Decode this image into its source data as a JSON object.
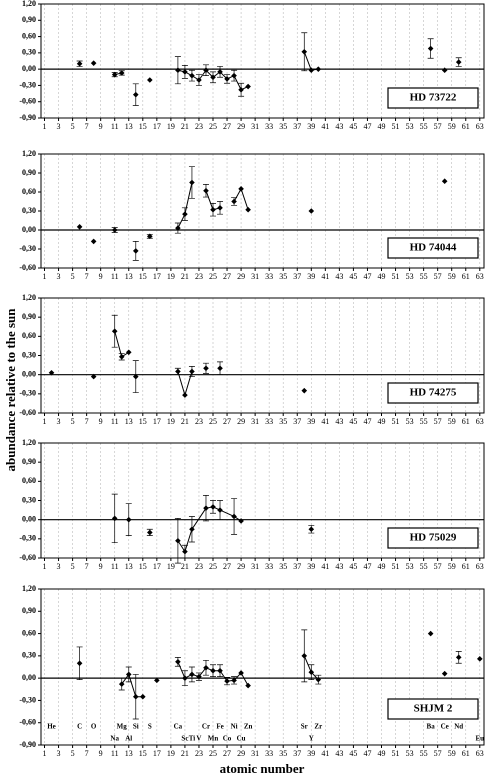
{
  "y_axis_label": "abundance  relative to the sun",
  "x_axis_label": "atomic number",
  "chart_data": [
    {
      "type": "scatter",
      "label": "HD 73722",
      "color": "#000000",
      "grid": true,
      "xlim": [
        0.5,
        63.6
      ],
      "xticks": [
        1,
        3,
        5,
        7,
        9,
        11,
        13,
        15,
        17,
        19,
        21,
        23,
        25,
        27,
        29,
        31,
        33,
        35,
        37,
        39,
        41,
        43,
        45,
        47,
        49,
        51,
        53,
        55,
        57,
        59,
        61,
        63
      ],
      "ylim": [
        -0.9,
        1.2
      ],
      "yticks": [
        {
          "value": 1.2,
          "label": "1,20"
        },
        {
          "value": 0.9,
          "label": "0,90"
        },
        {
          "value": 0.6,
          "label": "0,60"
        },
        {
          "value": 0.3,
          "label": "0,30"
        },
        {
          "value": 0,
          "label": "0,00"
        },
        {
          "value": -0.3,
          "label": "-0,30"
        },
        {
          "value": -0.6,
          "label": "-0,60"
        },
        {
          "value": -0.9,
          "label": "-0,90"
        }
      ],
      "series": [
        {
          "x": [
            6
          ],
          "values": [
            0.1
          ],
          "errors": [
            0.05
          ]
        },
        {
          "x": [
            8
          ],
          "values": [
            0.11
          ],
          "errors": [
            null
          ]
        },
        {
          "x": [
            11,
            12
          ],
          "values": [
            -0.1,
            -0.07
          ],
          "errors": [
            0.04,
            0.04
          ]
        },
        {
          "x": [
            14
          ],
          "values": [
            -0.47
          ],
          "errors": [
            0.2
          ]
        },
        {
          "x": [
            16
          ],
          "values": [
            -0.2
          ],
          "errors": [
            null
          ]
        },
        {
          "x": [
            20,
            21,
            22,
            23,
            24,
            25,
            26,
            27,
            28,
            29,
            30
          ],
          "values": [
            -0.02,
            -0.05,
            -0.12,
            -0.2,
            -0.02,
            -0.15,
            -0.05,
            -0.18,
            -0.12,
            -0.38,
            -0.32
          ],
          "errors": [
            0.25,
            0.12,
            0.1,
            0.1,
            0.1,
            0.1,
            0.1,
            0.08,
            0.1,
            0.12,
            null
          ]
        },
        {
          "x": [
            38,
            39,
            40
          ],
          "values": [
            0.32,
            -0.02,
            0
          ],
          "errors": [
            0.35,
            null,
            null
          ]
        },
        {
          "x": [
            56
          ],
          "values": [
            0.38
          ],
          "errors": [
            0.18
          ]
        },
        {
          "x": [
            58
          ],
          "values": [
            -0.02
          ],
          "errors": [
            null
          ]
        },
        {
          "x": [
            60
          ],
          "values": [
            0.13
          ],
          "errors": [
            0.08
          ]
        }
      ]
    },
    {
      "type": "scatter",
      "label": "HD 74044",
      "color": "#000000",
      "grid": true,
      "xlim": [
        0.5,
        63.6
      ],
      "xticks": [
        1,
        3,
        5,
        7,
        9,
        11,
        13,
        15,
        17,
        19,
        21,
        23,
        25,
        27,
        29,
        31,
        33,
        35,
        37,
        39,
        41,
        43,
        45,
        47,
        49,
        51,
        53,
        55,
        57,
        59,
        61,
        63
      ],
      "ylim": [
        -0.6,
        1.2
      ],
      "yticks": [
        {
          "value": 1.2,
          "label": "1,20"
        },
        {
          "value": 0.9,
          "label": "0,90"
        },
        {
          "value": 0.6,
          "label": "0,60"
        },
        {
          "value": 0.3,
          "label": "0,30"
        },
        {
          "value": 0,
          "label": "0,00"
        },
        {
          "value": -0.3,
          "label": "-0,30"
        },
        {
          "value": -0.6,
          "label": "-0,60"
        }
      ],
      "series": [
        {
          "x": [
            6
          ],
          "values": [
            0.05
          ],
          "errors": [
            null
          ]
        },
        {
          "x": [
            8
          ],
          "values": [
            -0.18
          ],
          "errors": [
            null
          ]
        },
        {
          "x": [
            11
          ],
          "values": [
            0
          ],
          "errors": [
            0.04
          ]
        },
        {
          "x": [
            14
          ],
          "values": [
            -0.33
          ],
          "errors": [
            0.15
          ]
        },
        {
          "x": [
            16
          ],
          "values": [
            -0.1
          ],
          "errors": [
            0.03
          ]
        },
        {
          "x": [
            20,
            21,
            22
          ],
          "values": [
            0.03,
            0.25,
            0.75
          ],
          "errors": [
            0.08,
            0.1,
            0.25
          ]
        },
        {
          "x": [
            24,
            25,
            26
          ],
          "values": [
            0.62,
            0.32,
            0.35
          ],
          "errors": [
            0.1,
            0.1,
            0.1
          ]
        },
        {
          "x": [
            28,
            29,
            30
          ],
          "values": [
            0.45,
            0.65,
            0.32
          ],
          "errors": [
            0.06,
            null,
            null
          ]
        },
        {
          "x": [
            39
          ],
          "values": [
            0.3
          ],
          "errors": [
            null
          ]
        },
        {
          "x": [
            58
          ],
          "values": [
            0.77
          ],
          "errors": [
            null
          ]
        }
      ]
    },
    {
      "type": "scatter",
      "label": "HD 74275",
      "color": "#000000",
      "grid": true,
      "xlim": [
        0.5,
        63.6
      ],
      "xticks": [
        1,
        3,
        5,
        7,
        9,
        11,
        13,
        15,
        17,
        19,
        21,
        23,
        25,
        27,
        29,
        31,
        33,
        35,
        37,
        39,
        41,
        43,
        45,
        47,
        49,
        51,
        53,
        55,
        57,
        59,
        61,
        63
      ],
      "ylim": [
        -0.6,
        1.2
      ],
      "yticks": [
        {
          "value": 1.2,
          "label": "1,20"
        },
        {
          "value": 0.9,
          "label": "0,90"
        },
        {
          "value": 0.6,
          "label": "0,60"
        },
        {
          "value": 0.3,
          "label": "0,30"
        },
        {
          "value": 0,
          "label": "0,00"
        },
        {
          "value": -0.3,
          "label": "-0,30"
        },
        {
          "value": -0.6,
          "label": "-0,60"
        }
      ],
      "series": [
        {
          "x": [
            2
          ],
          "values": [
            0.03
          ],
          "errors": [
            null
          ]
        },
        {
          "x": [
            8
          ],
          "values": [
            -0.03
          ],
          "errors": [
            null
          ]
        },
        {
          "x": [
            11,
            12,
            13
          ],
          "values": [
            0.68,
            0.28,
            0.35
          ],
          "errors": [
            0.25,
            0.05,
            null
          ]
        },
        {
          "x": [
            14
          ],
          "values": [
            -0.03
          ],
          "errors": [
            0.25
          ]
        },
        {
          "x": [
            20,
            21,
            22
          ],
          "values": [
            0.05,
            -0.32,
            0.05
          ],
          "errors": [
            0.05,
            null,
            0.08
          ]
        },
        {
          "x": [
            24
          ],
          "values": [
            0.1
          ],
          "errors": [
            0.08
          ]
        },
        {
          "x": [
            26
          ],
          "values": [
            0.1
          ],
          "errors": [
            0.1
          ]
        },
        {
          "x": [
            38
          ],
          "values": [
            -0.25
          ],
          "errors": [
            null
          ]
        }
      ]
    },
    {
      "type": "scatter",
      "label": "HD 75029",
      "color": "#000000",
      "grid": true,
      "xlim": [
        0.5,
        63.6
      ],
      "xticks": [
        1,
        3,
        5,
        7,
        9,
        11,
        13,
        15,
        17,
        19,
        21,
        23,
        25,
        27,
        29,
        31,
        33,
        35,
        37,
        39,
        41,
        43,
        45,
        47,
        49,
        51,
        53,
        55,
        57,
        59,
        61,
        63
      ],
      "ylim": [
        -0.6,
        1.2
      ],
      "yticks": [
        {
          "value": 1.2,
          "label": "1,20"
        },
        {
          "value": 0.9,
          "label": "0,90"
        },
        {
          "value": 0.6,
          "label": "0,60"
        },
        {
          "value": 0.3,
          "label": "0,30"
        },
        {
          "value": 0,
          "label": "0,00"
        },
        {
          "value": -0.3,
          "label": "-0,30"
        },
        {
          "value": -0.6,
          "label": "-0,60"
        }
      ],
      "series": [
        {
          "x": [
            11
          ],
          "values": [
            0.02
          ],
          "errors": [
            0.38
          ]
        },
        {
          "x": [
            13
          ],
          "values": [
            0
          ],
          "errors": [
            0.25
          ]
        },
        {
          "x": [
            16
          ],
          "values": [
            -0.2
          ],
          "errors": [
            0.05
          ]
        },
        {
          "x": [
            20,
            21,
            22,
            24,
            25,
            26,
            28,
            29
          ],
          "values": [
            -0.33,
            -0.5,
            -0.15,
            0.18,
            0.2,
            0.15,
            0.05,
            -0.02
          ],
          "errors": [
            0.35,
            0.1,
            0.2,
            0.2,
            0.1,
            0.15,
            0.28,
            null
          ]
        },
        {
          "x": [
            39
          ],
          "values": [
            -0.15
          ],
          "errors": [
            0.06
          ]
        }
      ]
    },
    {
      "type": "scatter",
      "label": "SHJM 2",
      "color": "#000000",
      "grid": true,
      "xlim": [
        0.5,
        63.6
      ],
      "xticks": [
        1,
        3,
        5,
        7,
        9,
        11,
        13,
        15,
        17,
        19,
        21,
        23,
        25,
        27,
        29,
        31,
        33,
        35,
        37,
        39,
        41,
        43,
        45,
        47,
        49,
        51,
        53,
        55,
        57,
        59,
        61,
        63
      ],
      "ylim": [
        -0.9,
        1.2
      ],
      "yticks": [
        {
          "value": 1.2,
          "label": "1,20"
        },
        {
          "value": 0.9,
          "label": "0,90"
        },
        {
          "value": 0.6,
          "label": "0,60"
        },
        {
          "value": 0.3,
          "label": "0,30"
        },
        {
          "value": 0,
          "label": "0,00"
        },
        {
          "value": -0.3,
          "label": "-0,30"
        },
        {
          "value": -0.6,
          "label": "-0,60"
        },
        {
          "value": -0.9,
          "label": "-0,90"
        }
      ],
      "series": [
        {
          "x": [
            6
          ],
          "values": [
            0.2
          ],
          "errors": [
            0.22
          ]
        },
        {
          "x": [
            12,
            13,
            14,
            15
          ],
          "values": [
            -0.08,
            0.05,
            -0.25,
            -0.25
          ],
          "errors": [
            0.08,
            0.1,
            0.3,
            null
          ]
        },
        {
          "x": [
            17
          ],
          "values": [
            -0.03
          ],
          "errors": [
            null
          ]
        },
        {
          "x": [
            20,
            21,
            22,
            23,
            24,
            25,
            26,
            27,
            28,
            29,
            30
          ],
          "values": [
            0.22,
            0,
            0.05,
            0.02,
            0.14,
            0.1,
            0.1,
            -0.04,
            -0.03,
            0.07,
            -0.1
          ],
          "errors": [
            0.06,
            0.1,
            0.1,
            0.05,
            0.1,
            0.08,
            0.08,
            0.05,
            0.05,
            null,
            null
          ]
        },
        {
          "x": [
            38,
            39,
            40
          ],
          "values": [
            0.3,
            0.08,
            -0.02
          ],
          "errors": [
            0.35,
            0.1,
            0.06
          ]
        },
        {
          "x": [
            56
          ],
          "values": [
            0.6
          ],
          "errors": [
            null
          ]
        },
        {
          "x": [
            58
          ],
          "values": [
            0.06
          ],
          "errors": [
            null
          ]
        },
        {
          "x": [
            60
          ],
          "values": [
            0.28
          ],
          "errors": [
            0.08
          ]
        },
        {
          "x": [
            63
          ],
          "values": [
            0.26
          ],
          "errors": [
            null
          ]
        }
      ],
      "element_labels": [
        [
          {
            "x": 2,
            "label": "He"
          },
          {
            "x": 6,
            "label": "C"
          },
          {
            "x": 8,
            "label": "O"
          },
          {
            "x": 12,
            "label": "Mg"
          },
          {
            "x": 14,
            "label": "Si"
          },
          {
            "x": 16,
            "label": "S"
          },
          {
            "x": 20,
            "label": "Ca"
          },
          {
            "x": 24,
            "label": "Cr"
          },
          {
            "x": 26,
            "label": "Fe"
          },
          {
            "x": 28,
            "label": "Ni"
          },
          {
            "x": 30,
            "label": "Zn"
          },
          {
            "x": 38,
            "label": "Sr"
          },
          {
            "x": 40,
            "label": "Zr"
          },
          {
            "x": 56,
            "label": "Ba"
          },
          {
            "x": 58,
            "label": "Ce"
          },
          {
            "x": 60,
            "label": "Nd"
          }
        ],
        [
          {
            "x": 11,
            "label": "Na"
          },
          {
            "x": 13,
            "label": "Al"
          },
          {
            "x": 21,
            "label": "Sc"
          },
          {
            "x": 22,
            "label": "Ti"
          },
          {
            "x": 23,
            "label": "V"
          },
          {
            "x": 25,
            "label": "Mn"
          },
          {
            "x": 27,
            "label": "Co"
          },
          {
            "x": 29,
            "label": "Cu"
          },
          {
            "x": 39,
            "label": "Y"
          },
          {
            "x": 63,
            "label": "Eu"
          }
        ]
      ]
    }
  ]
}
